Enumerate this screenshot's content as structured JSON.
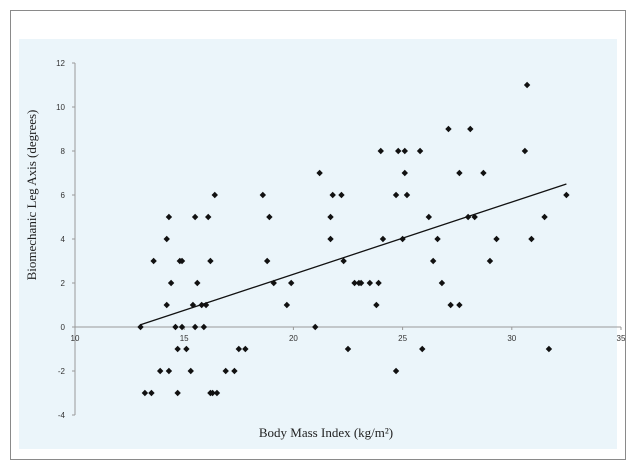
{
  "chart_data": {
    "type": "scatter",
    "title": "",
    "xlabel": "Body Mass Index (kg/m²)",
    "ylabel": "Biomechanic Leg Axis (degrees)",
    "xlim": [
      10,
      35
    ],
    "ylim": [
      -4,
      12
    ],
    "xticks": [
      10,
      15,
      20,
      25,
      30,
      35
    ],
    "yticks": [
      -4,
      -2,
      0,
      2,
      4,
      6,
      8,
      10,
      12
    ],
    "grid": false,
    "legend": "none",
    "colors": {
      "background": "#ebf5fa",
      "marker": "#111111",
      "trendline": "#111111",
      "axis": "#999999"
    },
    "series": [
      {
        "points": [
          [
            13.0,
            0
          ],
          [
            13.2,
            -3
          ],
          [
            13.5,
            -3
          ],
          [
            13.6,
            3
          ],
          [
            13.9,
            -2
          ],
          [
            14.2,
            1
          ],
          [
            14.2,
            4
          ],
          [
            14.3,
            5
          ],
          [
            14.3,
            -2
          ],
          [
            14.4,
            2
          ],
          [
            14.6,
            0
          ],
          [
            14.7,
            -3
          ],
          [
            14.7,
            -1
          ],
          [
            14.8,
            3
          ],
          [
            14.9,
            3
          ],
          [
            14.9,
            0
          ],
          [
            15.1,
            -1
          ],
          [
            15.3,
            -2
          ],
          [
            15.4,
            1
          ],
          [
            15.5,
            0
          ],
          [
            15.5,
            5
          ],
          [
            15.6,
            2
          ],
          [
            15.8,
            1
          ],
          [
            15.9,
            0
          ],
          [
            16.0,
            1
          ],
          [
            16.1,
            5
          ],
          [
            16.2,
            3
          ],
          [
            16.2,
            -3
          ],
          [
            16.3,
            -3
          ],
          [
            16.4,
            6
          ],
          [
            16.5,
            -3
          ],
          [
            16.9,
            -2
          ],
          [
            17.3,
            -2
          ],
          [
            17.5,
            -1
          ],
          [
            17.8,
            -1
          ],
          [
            18.6,
            6
          ],
          [
            18.8,
            3
          ],
          [
            18.9,
            5
          ],
          [
            19.1,
            2
          ],
          [
            19.7,
            1
          ],
          [
            19.9,
            2
          ],
          [
            21.0,
            0
          ],
          [
            21.2,
            7
          ],
          [
            21.7,
            4
          ],
          [
            21.7,
            5
          ],
          [
            21.8,
            6
          ],
          [
            22.2,
            6
          ],
          [
            22.3,
            3
          ],
          [
            22.5,
            -1
          ],
          [
            22.8,
            2
          ],
          [
            23.0,
            2
          ],
          [
            23.1,
            2
          ],
          [
            23.5,
            2
          ],
          [
            23.8,
            1
          ],
          [
            23.9,
            2
          ],
          [
            24.0,
            8
          ],
          [
            24.1,
            4
          ],
          [
            24.7,
            6
          ],
          [
            24.7,
            -2
          ],
          [
            24.8,
            8
          ],
          [
            25.0,
            4
          ],
          [
            25.1,
            8
          ],
          [
            25.1,
            7
          ],
          [
            25.2,
            6
          ],
          [
            25.8,
            8
          ],
          [
            25.9,
            -1
          ],
          [
            26.2,
            5
          ],
          [
            26.4,
            3
          ],
          [
            26.6,
            4
          ],
          [
            26.8,
            2
          ],
          [
            27.1,
            9
          ],
          [
            27.2,
            1
          ],
          [
            27.6,
            1
          ],
          [
            27.6,
            7
          ],
          [
            28.0,
            5
          ],
          [
            28.1,
            9
          ],
          [
            28.3,
            5
          ],
          [
            28.7,
            7
          ],
          [
            29.0,
            3
          ],
          [
            29.3,
            4
          ],
          [
            30.6,
            8
          ],
          [
            30.7,
            11
          ],
          [
            30.9,
            4
          ],
          [
            31.5,
            5
          ],
          [
            31.7,
            -1
          ],
          [
            32.5,
            6
          ]
        ]
      }
    ],
    "trendline": {
      "x": [
        13.0,
        32.5
      ],
      "y": [
        0.1,
        6.5
      ]
    }
  }
}
